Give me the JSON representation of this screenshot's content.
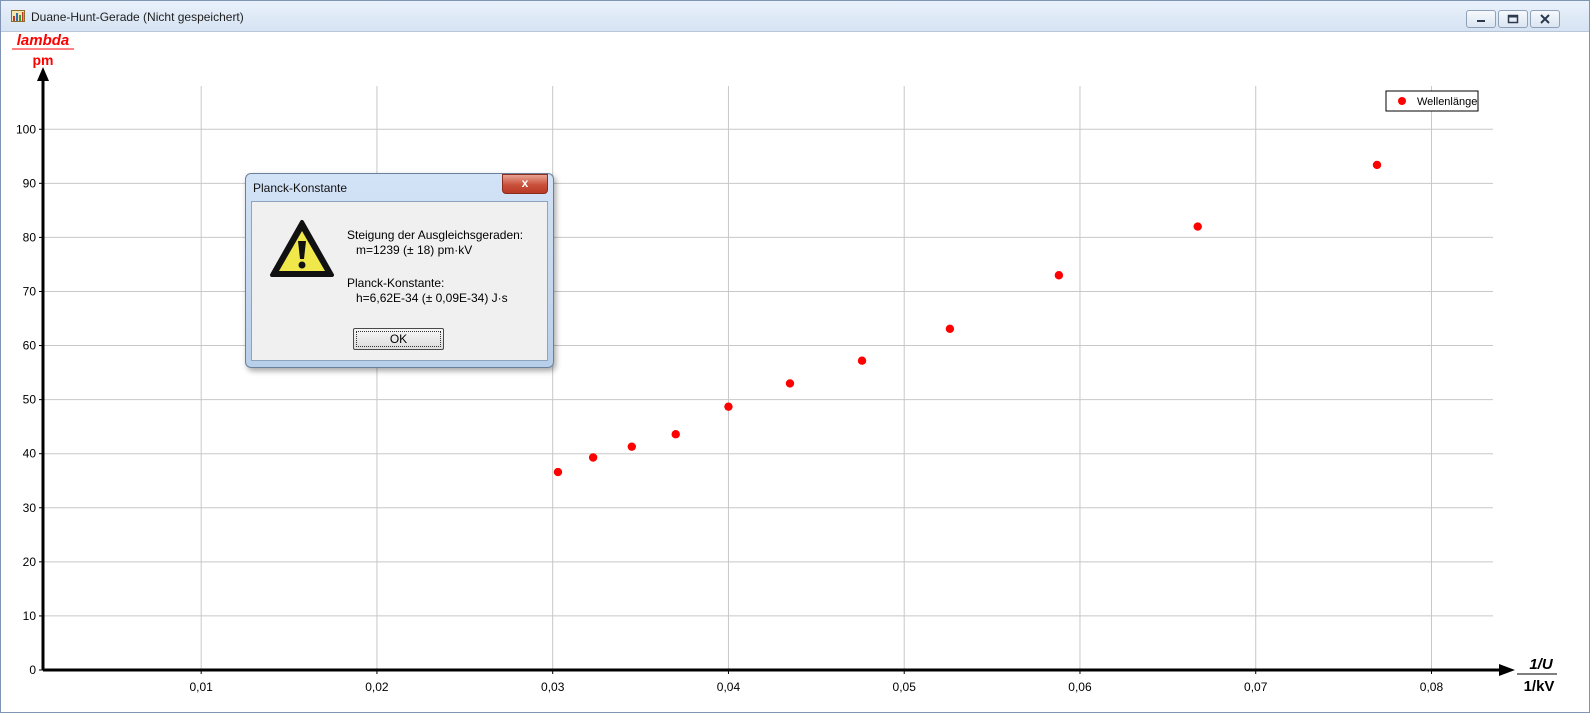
{
  "window": {
    "title": "Duane-Hunt-Gerade (Nicht gespeichert)",
    "app_icon": "chart-app-icon",
    "controls": [
      "minimize-icon",
      "restore-icon",
      "close-icon"
    ]
  },
  "chart_data": {
    "type": "scatter",
    "ylabel": "lambda",
    "yunit": "pm",
    "xlabel": "1/U",
    "xunit": "1/kV",
    "xlim": [
      0.001,
      0.0835
    ],
    "ylim": [
      0,
      108
    ],
    "xticks": [
      0.01,
      0.02,
      0.03,
      0.04,
      0.05,
      0.06,
      0.07,
      0.08
    ],
    "xtick_labels": [
      "0,01",
      "0,02",
      "0,03",
      "0,04",
      "0,05",
      "0,06",
      "0,07",
      "0,08"
    ],
    "yticks": [
      0,
      10,
      20,
      30,
      40,
      50,
      60,
      70,
      80,
      90,
      100
    ],
    "ytick_labels": [
      "0",
      "10",
      "20",
      "30",
      "40",
      "50",
      "60",
      "70",
      "80",
      "90",
      "100"
    ],
    "grid": true,
    "legend_position": "top-right",
    "series": [
      {
        "name": "Wellenlänge",
        "color": "#ff0000",
        "x": [
          0.0303,
          0.0323,
          0.0345,
          0.037,
          0.04,
          0.0435,
          0.0476,
          0.0526,
          0.0588,
          0.0667,
          0.0769
        ],
        "y": [
          36.6,
          39.3,
          41.3,
          43.6,
          48.7,
          53.0,
          57.2,
          63.1,
          73.0,
          82.0,
          93.4
        ]
      }
    ]
  },
  "dialog": {
    "title": "Planck-Konstante",
    "close_glyph": "x",
    "icon": "warning-icon",
    "line1": "Steigung der Ausgleichsgeraden:",
    "line2": "m=1239 (± 18)  pm·kV",
    "line3": "Planck-Konstante:",
    "line4": "h=6,62E-34 (± 0,09E-34)  J·s",
    "ok_label": "OK"
  }
}
